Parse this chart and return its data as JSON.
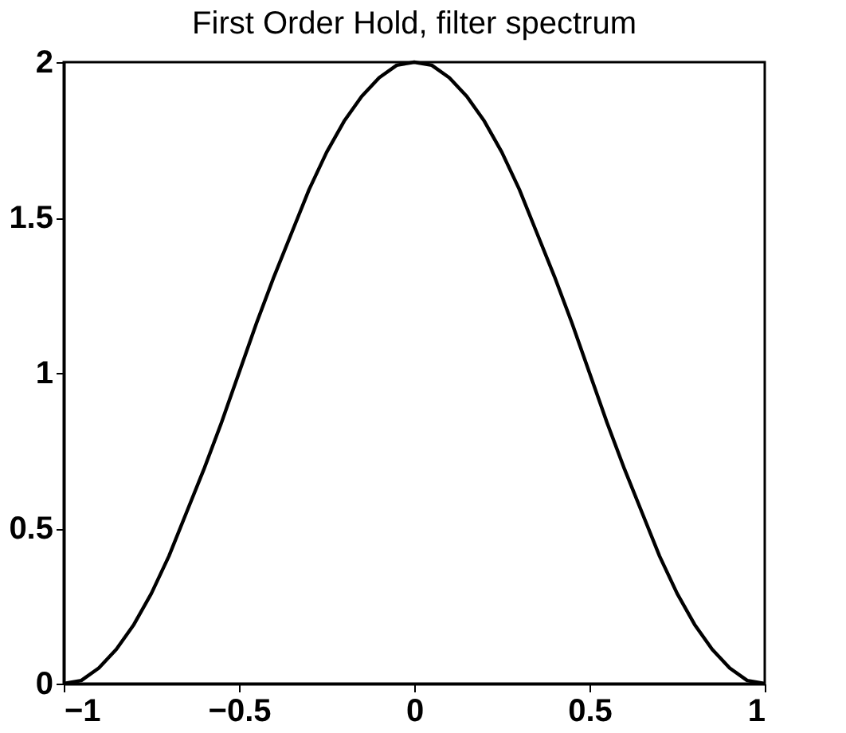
{
  "chart_data": {
    "type": "line",
    "title": "First Order Hold, filter spectrum",
    "x": [
      -1,
      -0.95,
      -0.9,
      -0.85,
      -0.8,
      -0.75,
      -0.7,
      -0.65,
      -0.6,
      -0.55,
      -0.5,
      -0.45,
      -0.4,
      -0.35,
      -0.3,
      -0.25,
      -0.2,
      -0.15,
      -0.1,
      -0.05,
      0,
      0.05,
      0.1,
      0.15,
      0.2,
      0.25,
      0.3,
      0.35,
      0.4,
      0.45,
      0.5,
      0.55,
      0.6,
      0.65,
      0.7,
      0.75,
      0.8,
      0.85,
      0.9,
      0.95,
      1
    ],
    "series": [
      {
        "color": "#000000",
        "values": [
          0,
          0.01,
          0.05,
          0.11,
          0.19,
          0.29,
          0.41,
          0.55,
          0.69,
          0.84,
          1,
          1.16,
          1.31,
          1.45,
          1.59,
          1.71,
          1.81,
          1.89,
          1.95,
          1.99,
          2,
          1.99,
          1.95,
          1.89,
          1.81,
          1.71,
          1.59,
          1.45,
          1.31,
          1.16,
          1,
          0.84,
          0.69,
          0.55,
          0.41,
          0.29,
          0.19,
          0.11,
          0.05,
          0.01,
          0
        ]
      }
    ],
    "xlim": [
      -1,
      1
    ],
    "xticks": [
      -1,
      -0.5,
      0,
      0.5,
      1
    ],
    "ylim": [
      0,
      2
    ],
    "yticks": [
      0,
      0.5,
      1,
      1.5,
      2
    ],
    "grid": false,
    "marker": "none",
    "line_style": "solid"
  }
}
